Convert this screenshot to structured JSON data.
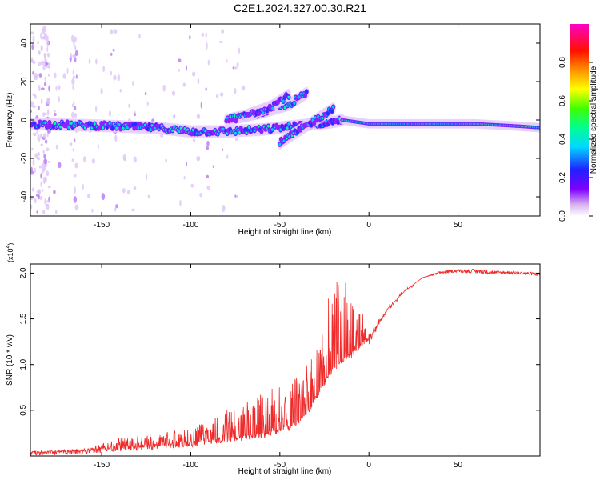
{
  "page_title": "C2E1.2024.327.00.30.R21",
  "colors": {
    "snr_line": "#ee2a2a",
    "frame": "#000000",
    "background": "#ffffff"
  },
  "chart_data": [
    {
      "type": "heatmap",
      "title": "C2E1.2024.327.00.30.R21",
      "xlabel": "Height of straight line (km)",
      "ylabel": "Frequency (Hz)",
      "xlim": [
        -190,
        96
      ],
      "ylim": [
        -50,
        50
      ],
      "x_ticks": [
        -150,
        -100,
        -50,
        0,
        50
      ],
      "y_ticks": [
        -40,
        -20,
        0,
        20,
        40
      ],
      "colorbar": {
        "label": "Normalized spectral amplitude",
        "range": [
          0.0,
          1.0
        ],
        "ticks": [
          0.0,
          0.2,
          0.4,
          0.6,
          0.8
        ],
        "colormap": "rainbow (white-violet-blue-cyan-green-yellow-orange-red-magenta)"
      },
      "traces": [
        {
          "x": [
            -190,
            -150,
            -120,
            -100,
            -80,
            -60,
            -40,
            -20,
            -15
          ],
          "freq": [
            -2,
            -3,
            -4,
            -6,
            -6,
            -5,
            -3,
            -1,
            0
          ]
        },
        {
          "x": [
            -80,
            -60,
            -45,
            -35
          ],
          "freq": [
            0,
            4,
            8,
            14
          ]
        },
        {
          "x": [
            -70,
            -55,
            -45
          ],
          "freq": [
            2,
            7,
            13
          ]
        },
        {
          "x": [
            -50,
            -40,
            -30,
            -20
          ],
          "freq": [
            -12,
            -6,
            0,
            6
          ]
        },
        {
          "x": [
            -15,
            0,
            20,
            60,
            80,
            96
          ],
          "freq": [
            0,
            -2,
            -2,
            -2,
            -3,
            -4
          ]
        }
      ]
    },
    {
      "type": "line",
      "xlabel": "Height of straight line (km)",
      "ylabel": "SNR (10 * v/v)",
      "y_multiplier": "(x10",
      "y_multiplier_exp": "4",
      "y_multiplier_close": ")",
      "xlim": [
        -190,
        96
      ],
      "ylim": [
        0,
        2.1
      ],
      "x_ticks": [
        -150,
        -100,
        -50,
        0,
        50
      ],
      "y_ticks": [
        0.5,
        1.0,
        1.5,
        2.0
      ],
      "y_tick_labels": [
        "0.5",
        "1.0",
        "1.5",
        "2.0"
      ],
      "envelope": {
        "x": [
          -190,
          -160,
          -140,
          -120,
          -100,
          -80,
          -60,
          -45,
          -35,
          -28,
          -22,
          -15,
          -10,
          -5,
          0,
          5,
          10,
          20,
          30,
          40,
          50,
          60,
          70,
          80,
          96
        ],
        "base": [
          0.03,
          0.05,
          0.08,
          0.1,
          0.13,
          0.18,
          0.22,
          0.3,
          0.45,
          0.7,
          0.9,
          1.05,
          1.1,
          1.2,
          1.3,
          1.45,
          1.6,
          1.8,
          1.95,
          2.0,
          2.02,
          2.01,
          2.0,
          2.0,
          1.98
        ],
        "spike_max": [
          0.05,
          0.08,
          0.2,
          0.25,
          0.3,
          0.5,
          0.7,
          0.8,
          1.0,
          1.2,
          1.9,
          2.0,
          1.9,
          1.7,
          1.2,
          1.4,
          1.6,
          1.8,
          1.95,
          2.03,
          2.05,
          2.06,
          2.04,
          2.03,
          2.02
        ]
      }
    }
  ]
}
